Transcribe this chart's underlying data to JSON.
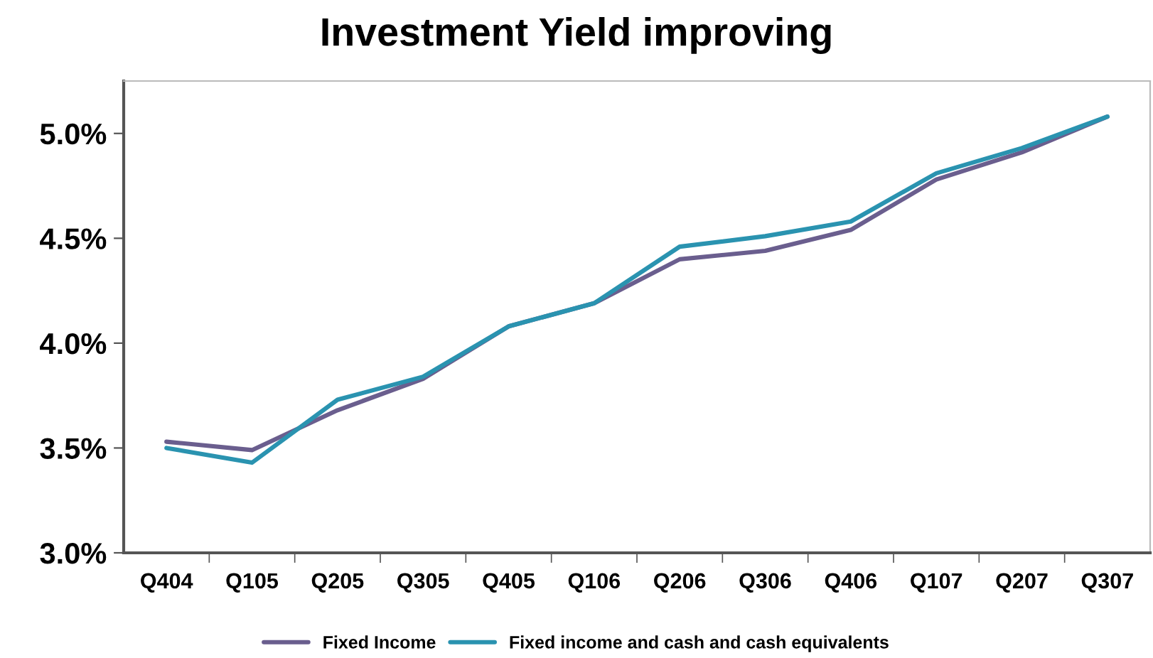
{
  "chart_data": {
    "type": "line",
    "title": "Investment Yield improving",
    "categories": [
      "Q404",
      "Q105",
      "Q205",
      "Q305",
      "Q405",
      "Q106",
      "Q206",
      "Q306",
      "Q406",
      "Q107",
      "Q207",
      "Q307"
    ],
    "series": [
      {
        "name": "Fixed Income",
        "color": "#6a5e8e",
        "values": [
          3.53,
          3.49,
          3.68,
          3.83,
          4.08,
          4.19,
          4.4,
          4.44,
          4.54,
          4.78,
          4.91,
          5.08
        ]
      },
      {
        "name": "Fixed income and cash and cash equivalents",
        "color": "#2a93b0",
        "values": [
          3.5,
          3.43,
          3.73,
          3.84,
          4.08,
          4.19,
          4.46,
          4.51,
          4.58,
          4.81,
          4.93,
          5.08
        ]
      }
    ],
    "ylim": [
      3.0,
      5.25
    ],
    "yticks": [
      {
        "value": 3.0,
        "label": "3.0%"
      },
      {
        "value": 3.5,
        "label": "3.5%"
      },
      {
        "value": 4.0,
        "label": "4.0%"
      },
      {
        "value": 4.5,
        "label": "4.5%"
      },
      {
        "value": 5.0,
        "label": "5.0%"
      }
    ],
    "grid": false,
    "legend": "bottom",
    "marker": "none",
    "line_style": "solid"
  }
}
